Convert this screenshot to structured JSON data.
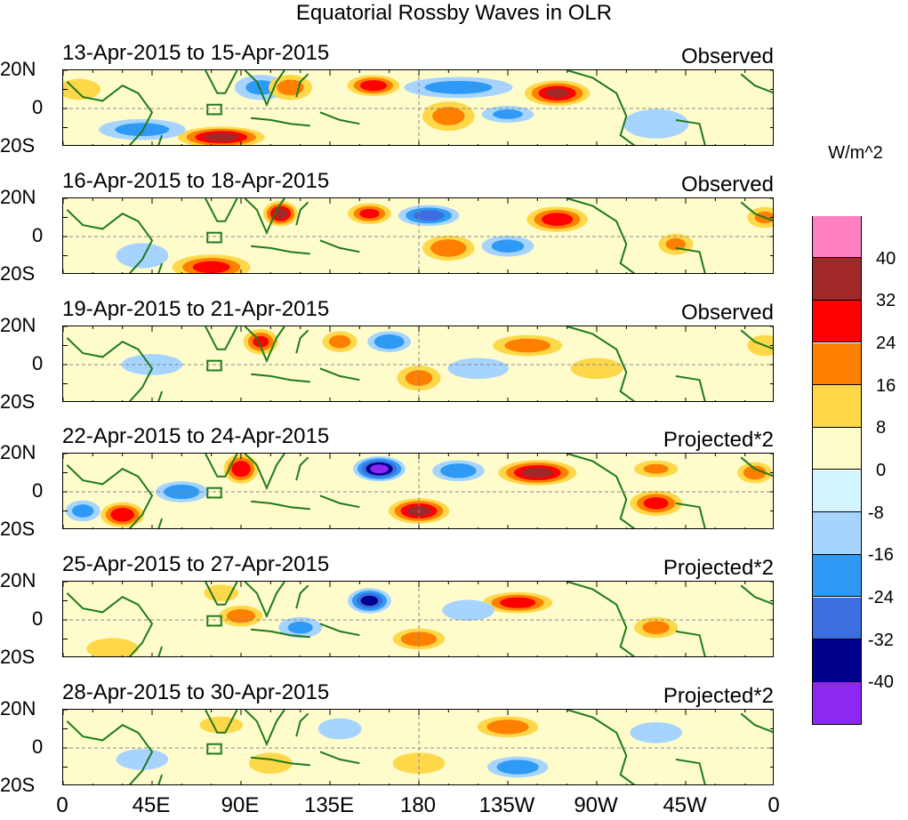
{
  "title": "Equatorial Rossby Waves in OLR",
  "colorbar": {
    "units": "W/m^2",
    "levels": [
      "40",
      "32",
      "24",
      "16",
      "8",
      "0",
      "-8",
      "-16",
      "-24",
      "-32",
      "-40"
    ],
    "colors": [
      "#ff80c0",
      "#a02828",
      "#ff0000",
      "#ff8000",
      "#ffd84a",
      "#fffccc",
      "#d2f5ff",
      "#a6d4ff",
      "#2e9af5",
      "#3c6ee0",
      "#00008c",
      "#8c28f0"
    ]
  },
  "map_colors": {
    "land": "#1e7a1e",
    "dash": "#888888",
    "frame": "#000000"
  },
  "chart_data": {
    "type": "heatmap",
    "title": "Equatorial Rossby Waves in OLR",
    "units": "W/m^2",
    "x_ticks": [
      "0",
      "45E",
      "90E",
      "135E",
      "180",
      "135W",
      "90W",
      "45W",
      "0"
    ],
    "x_values": [
      0,
      45,
      90,
      135,
      180,
      225,
      270,
      315,
      360
    ],
    "y_ticks": [
      "20N",
      "0",
      "20S"
    ],
    "y_values": [
      20,
      0,
      -20
    ],
    "xlim": [
      0,
      360
    ],
    "ylim": [
      -20,
      20
    ],
    "contour_levels": [
      -40,
      -32,
      -24,
      -16,
      -8,
      0,
      8,
      16,
      24,
      32,
      40
    ],
    "panels": [
      {
        "dates": "13-Apr-2015 to 15-Apr-2015",
        "kind": "Observed",
        "anomalies": [
          {
            "lon": 80,
            "lat": -15,
            "value": 34,
            "rx": 20,
            "ry": 5
          },
          {
            "lon": 40,
            "lat": -11,
            "value": -18,
            "rx": 20,
            "ry": 5
          },
          {
            "lon": 100,
            "lat": 11,
            "value": -16,
            "rx": 12,
            "ry": 6
          },
          {
            "lon": 115,
            "lat": 11,
            "value": 18,
            "rx": 10,
            "ry": 6
          },
          {
            "lon": 157,
            "lat": 12,
            "value": 28,
            "rx": 12,
            "ry": 5
          },
          {
            "lon": 200,
            "lat": 11,
            "value": -18,
            "rx": 25,
            "ry": 5
          },
          {
            "lon": 250,
            "lat": 8,
            "value": 32,
            "rx": 15,
            "ry": 6
          },
          {
            "lon": 195,
            "lat": -4,
            "value": 18,
            "rx": 12,
            "ry": 7
          },
          {
            "lon": 225,
            "lat": -3,
            "value": -16,
            "rx": 12,
            "ry": 4
          },
          {
            "lon": 8,
            "lat": 10,
            "value": 14,
            "rx": 10,
            "ry": 5
          },
          {
            "lon": 300,
            "lat": -8,
            "value": -14,
            "rx": 15,
            "ry": 7
          }
        ]
      },
      {
        "dates": "16-Apr-2015 to 18-Apr-2015",
        "kind": "Observed",
        "anomalies": [
          {
            "lon": 110,
            "lat": 12,
            "value": 34,
            "rx": 8,
            "ry": 6
          },
          {
            "lon": 155,
            "lat": 12,
            "value": 25,
            "rx": 10,
            "ry": 5
          },
          {
            "lon": 185,
            "lat": 11,
            "value": -28,
            "rx": 14,
            "ry": 5
          },
          {
            "lon": 250,
            "lat": 9,
            "value": 28,
            "rx": 14,
            "ry": 6
          },
          {
            "lon": 195,
            "lat": -6,
            "value": 22,
            "rx": 12,
            "ry": 6
          },
          {
            "lon": 225,
            "lat": -5,
            "value": -18,
            "rx": 12,
            "ry": 5
          },
          {
            "lon": 75,
            "lat": -16,
            "value": 26,
            "rx": 18,
            "ry": 6
          },
          {
            "lon": 40,
            "lat": -10,
            "value": -14,
            "rx": 12,
            "ry": 6
          },
          {
            "lon": 310,
            "lat": -4,
            "value": 16,
            "rx": 8,
            "ry": 5
          },
          {
            "lon": 355,
            "lat": 10,
            "value": 16,
            "rx": 8,
            "ry": 5
          }
        ]
      },
      {
        "dates": "19-Apr-2015 to 21-Apr-2015",
        "kind": "Observed",
        "anomalies": [
          {
            "lon": 100,
            "lat": 12,
            "value": 25,
            "rx": 8,
            "ry": 6
          },
          {
            "lon": 140,
            "lat": 12,
            "value": 18,
            "rx": 8,
            "ry": 5
          },
          {
            "lon": 165,
            "lat": 12,
            "value": -22,
            "rx": 10,
            "ry": 5
          },
          {
            "lon": 235,
            "lat": 10,
            "value": 20,
            "rx": 16,
            "ry": 5
          },
          {
            "lon": 180,
            "lat": -7,
            "value": 18,
            "rx": 10,
            "ry": 6
          },
          {
            "lon": 210,
            "lat": -2,
            "value": -14,
            "rx": 14,
            "ry": 5
          },
          {
            "lon": 270,
            "lat": -2,
            "value": 14,
            "rx": 12,
            "ry": 5
          },
          {
            "lon": 45,
            "lat": 0,
            "value": -12,
            "rx": 14,
            "ry": 5
          },
          {
            "lon": 355,
            "lat": 10,
            "value": 14,
            "rx": 8,
            "ry": 5
          }
        ]
      },
      {
        "dates": "22-Apr-2015 to 24-Apr-2015",
        "kind": "Projected*2",
        "anomalies": [
          {
            "lon": 160,
            "lat": 12,
            "value": -42,
            "rx": 12,
            "ry": 6
          },
          {
            "lon": 90,
            "lat": 12,
            "value": 30,
            "rx": 8,
            "ry": 7
          },
          {
            "lon": 240,
            "lat": 10,
            "value": 34,
            "rx": 18,
            "ry": 6
          },
          {
            "lon": 180,
            "lat": -10,
            "value": 34,
            "rx": 14,
            "ry": 6
          },
          {
            "lon": 300,
            "lat": -6,
            "value": 26,
            "rx": 12,
            "ry": 6
          },
          {
            "lon": 30,
            "lat": -12,
            "value": 30,
            "rx": 10,
            "ry": 6
          },
          {
            "lon": 60,
            "lat": 0,
            "value": -22,
            "rx": 12,
            "ry": 5
          },
          {
            "lon": 200,
            "lat": 11,
            "value": -22,
            "rx": 12,
            "ry": 5
          },
          {
            "lon": 300,
            "lat": 12,
            "value": 16,
            "rx": 10,
            "ry": 4
          },
          {
            "lon": 350,
            "lat": 10,
            "value": 20,
            "rx": 8,
            "ry": 5
          },
          {
            "lon": 10,
            "lat": -10,
            "value": -18,
            "rx": 8,
            "ry": 5
          }
        ]
      },
      {
        "dates": "25-Apr-2015 to 27-Apr-2015",
        "kind": "Projected*2",
        "anomalies": [
          {
            "lon": 155,
            "lat": 10,
            "value": -34,
            "rx": 10,
            "ry": 6
          },
          {
            "lon": 230,
            "lat": 9,
            "value": 28,
            "rx": 16,
            "ry": 5
          },
          {
            "lon": 90,
            "lat": 2,
            "value": 20,
            "rx": 10,
            "ry": 5
          },
          {
            "lon": 180,
            "lat": -10,
            "value": 22,
            "rx": 12,
            "ry": 5
          },
          {
            "lon": 205,
            "lat": 5,
            "value": -14,
            "rx": 12,
            "ry": 5
          },
          {
            "lon": 300,
            "lat": -4,
            "value": 18,
            "rx": 10,
            "ry": 5
          },
          {
            "lon": 25,
            "lat": -15,
            "value": 14,
            "rx": 12,
            "ry": 5
          },
          {
            "lon": 120,
            "lat": -4,
            "value": -16,
            "rx": 10,
            "ry": 5
          },
          {
            "lon": 80,
            "lat": 14,
            "value": 14,
            "rx": 8,
            "ry": 4
          }
        ]
      },
      {
        "dates": "28-Apr-2015 to 30-Apr-2015",
        "kind": "Projected*2",
        "anomalies": [
          {
            "lon": 225,
            "lat": 11,
            "value": 22,
            "rx": 14,
            "ry": 5
          },
          {
            "lon": 230,
            "lat": -10,
            "value": -22,
            "rx": 14,
            "ry": 5
          },
          {
            "lon": 140,
            "lat": 10,
            "value": -12,
            "rx": 10,
            "ry": 5
          },
          {
            "lon": 80,
            "lat": 12,
            "value": 12,
            "rx": 10,
            "ry": 4
          },
          {
            "lon": 180,
            "lat": -8,
            "value": 12,
            "rx": 12,
            "ry": 5
          },
          {
            "lon": 40,
            "lat": -6,
            "value": -12,
            "rx": 12,
            "ry": 5
          },
          {
            "lon": 300,
            "lat": 8,
            "value": -10,
            "rx": 12,
            "ry": 5
          },
          {
            "lon": 105,
            "lat": -8,
            "value": 10,
            "rx": 10,
            "ry": 5
          }
        ]
      }
    ]
  }
}
